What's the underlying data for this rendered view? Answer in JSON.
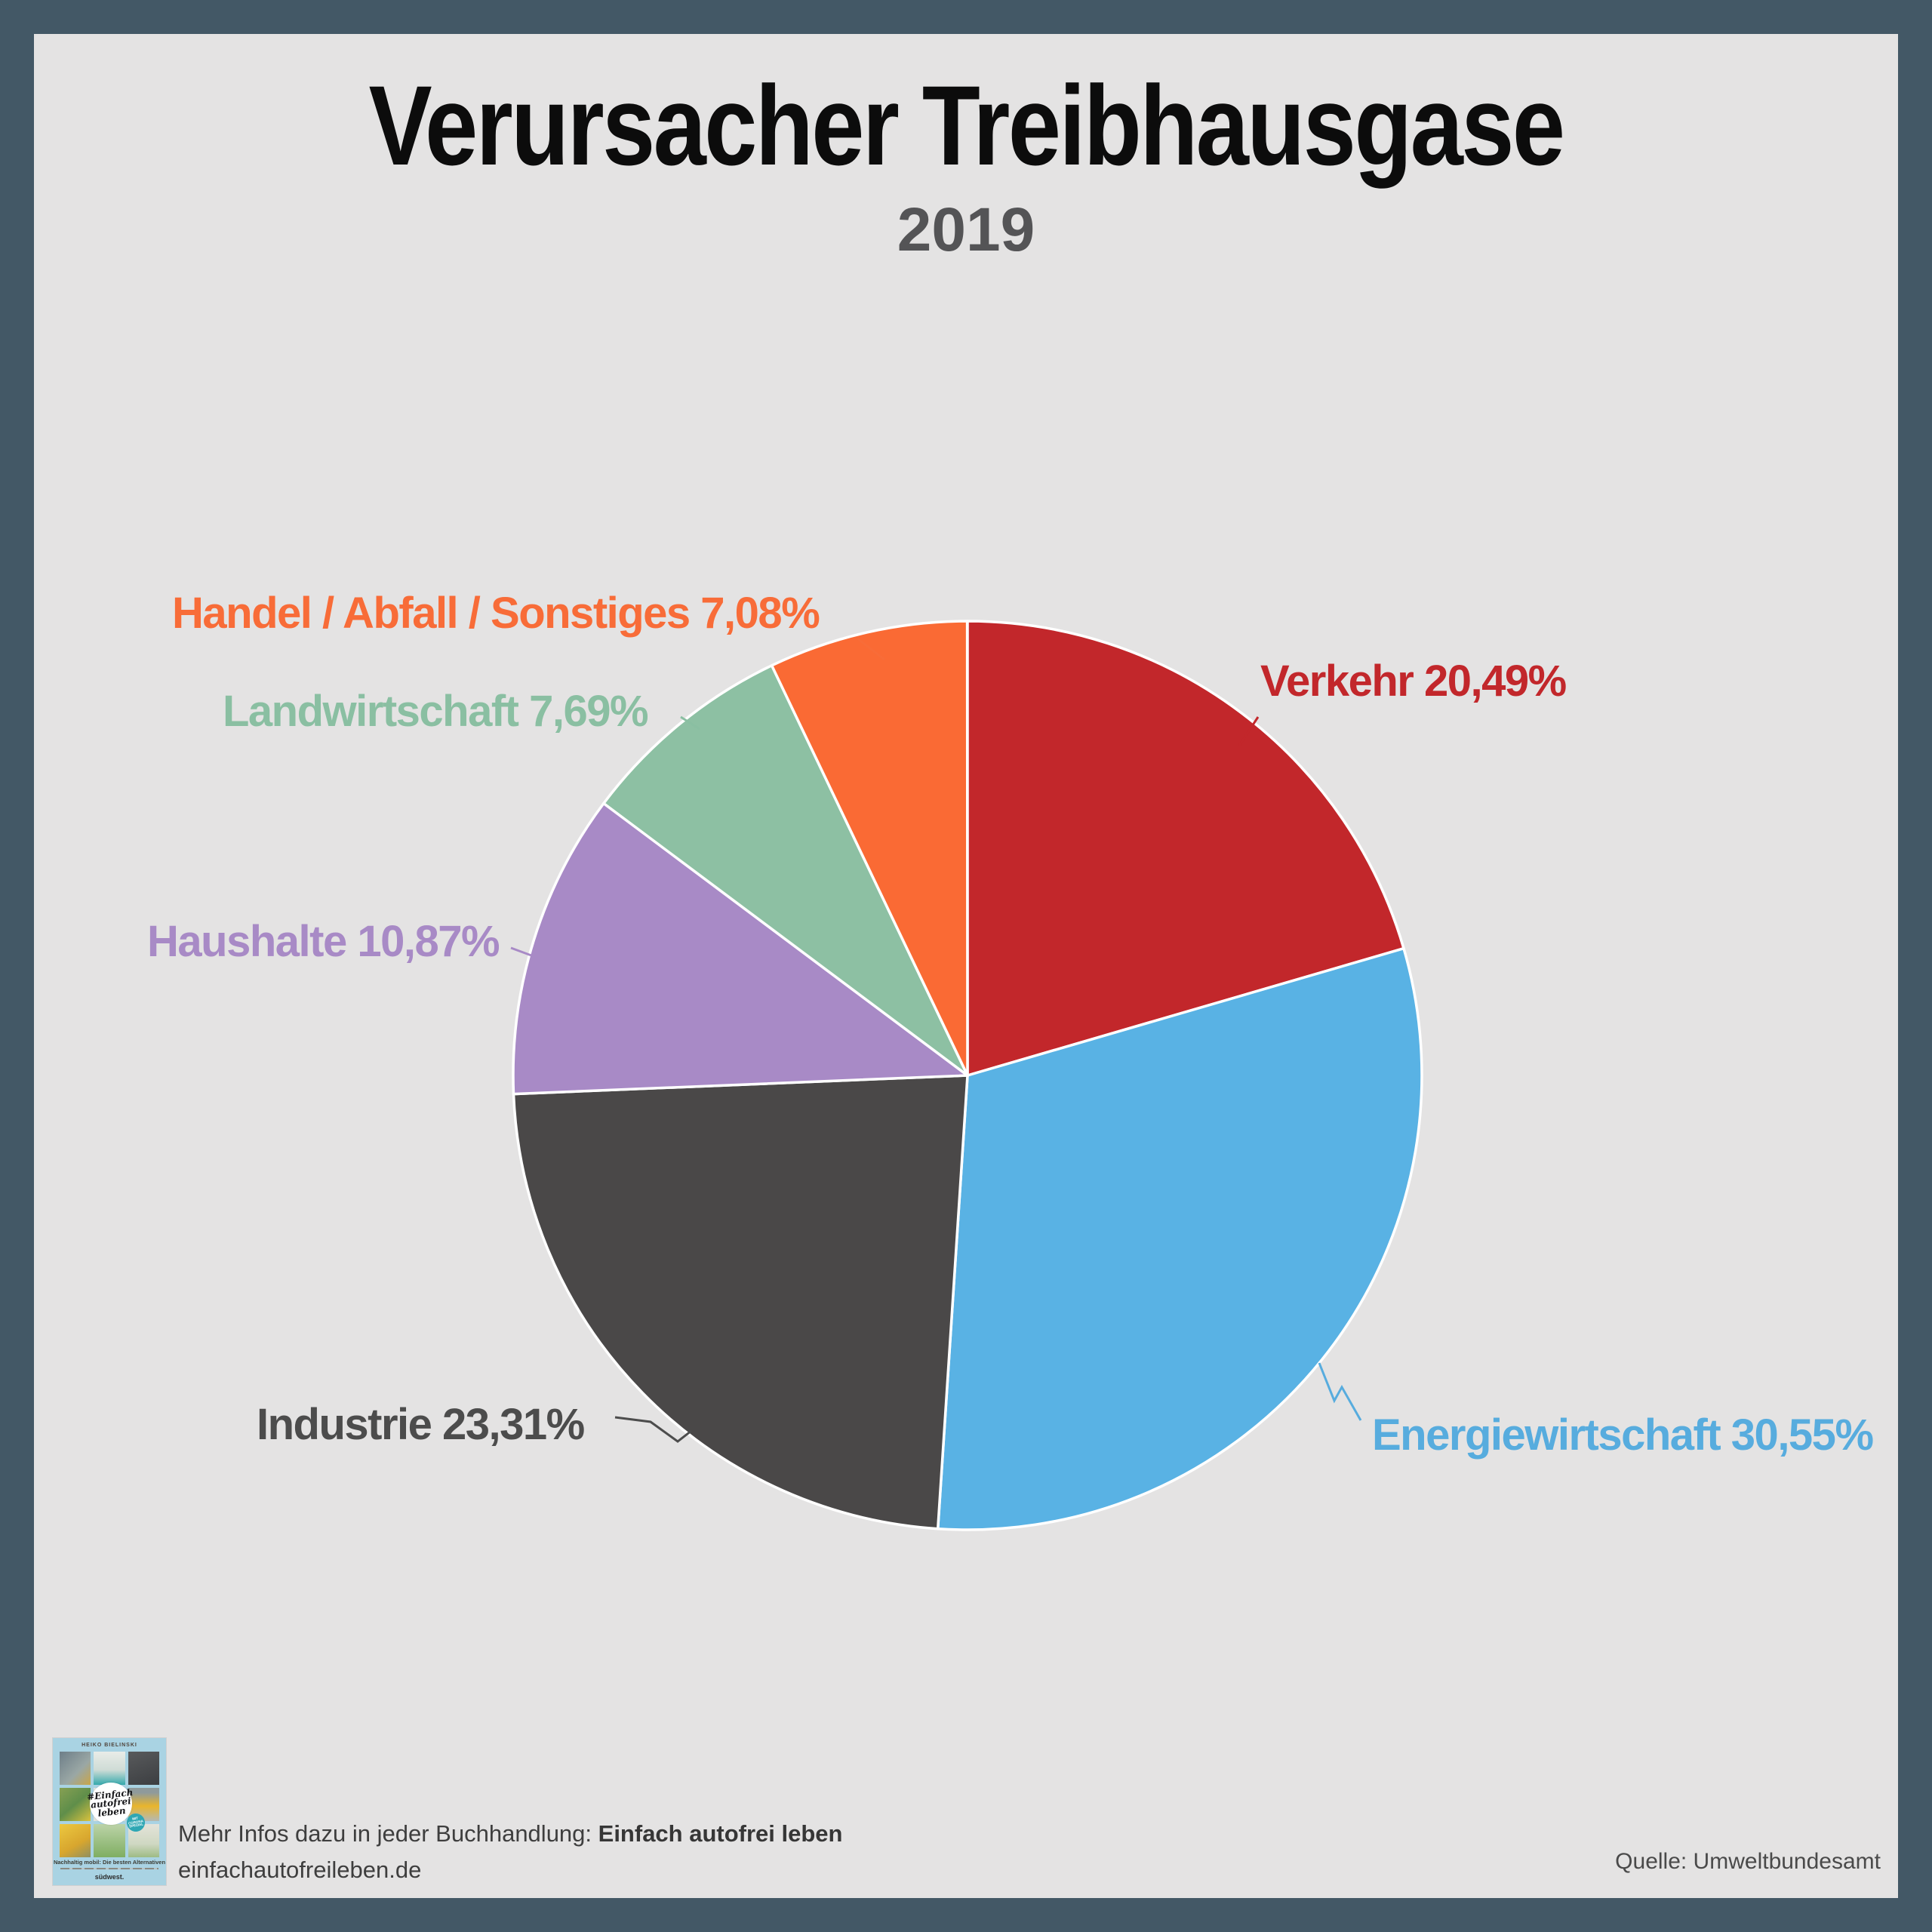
{
  "frame": {
    "border_color": "#435866",
    "background_color": "#E4E3E3"
  },
  "header": {
    "title": "Verursacher Treibhausgase",
    "subtitle": "2019"
  },
  "chart_data": {
    "type": "pie",
    "title": "Verursacher Treibhausgase",
    "subtitle": "2019",
    "units": "percent",
    "start_angle_deg": 0,
    "direction": "clockwise",
    "legend_position": "labels-around-pie",
    "slices": [
      {
        "label": "Verkehr",
        "value": 20.49,
        "display": "Verkehr 20,49%",
        "color": "#C2272B",
        "label_color": "#C2272B"
      },
      {
        "label": "Energiewirtschaft",
        "value": 30.55,
        "display": "Energiewirtschaft 30,55%",
        "color": "#59B2E4",
        "label_color": "#57ACDE"
      },
      {
        "label": "Industrie",
        "value": 23.31,
        "display": "Industrie 23,31%",
        "color": "#4A4848",
        "label_color": "#4C4C4C"
      },
      {
        "label": "Haushalte",
        "value": 10.87,
        "display": "Haushalte 10,87%",
        "color": "#A88AC6",
        "label_color": "#A88AC6"
      },
      {
        "label": "Landwirtschaft",
        "value": 7.69,
        "display": "Landwirtschaft 7,69%",
        "color": "#8DC0A3",
        "label_color": "#8ABFA2"
      },
      {
        "label": "Handel / Abfall / Sonstiges",
        "value": 7.08,
        "display": "Handel / Abfall / Sonstiges 7,08%",
        "color": "#FA6A34",
        "label_color": "#F86C38"
      }
    ]
  },
  "footer": {
    "info_prefix": "Mehr Infos dazu in jeder Buchhandlung: ",
    "info_bold": "Einfach autofrei leben",
    "website": "einfachautofreileben.de",
    "source": "Quelle: Umweltbundesamt"
  },
  "book_cover": {
    "author": "HEIKO BIELINSKI",
    "title_lines": [
      "#Einfach",
      "autofrei",
      "leben"
    ],
    "badge": "MIT CORONA SPEZIAL",
    "subtitle": "Nachhaltig mobil: Die besten Alternativen",
    "publisher": "südwest."
  }
}
